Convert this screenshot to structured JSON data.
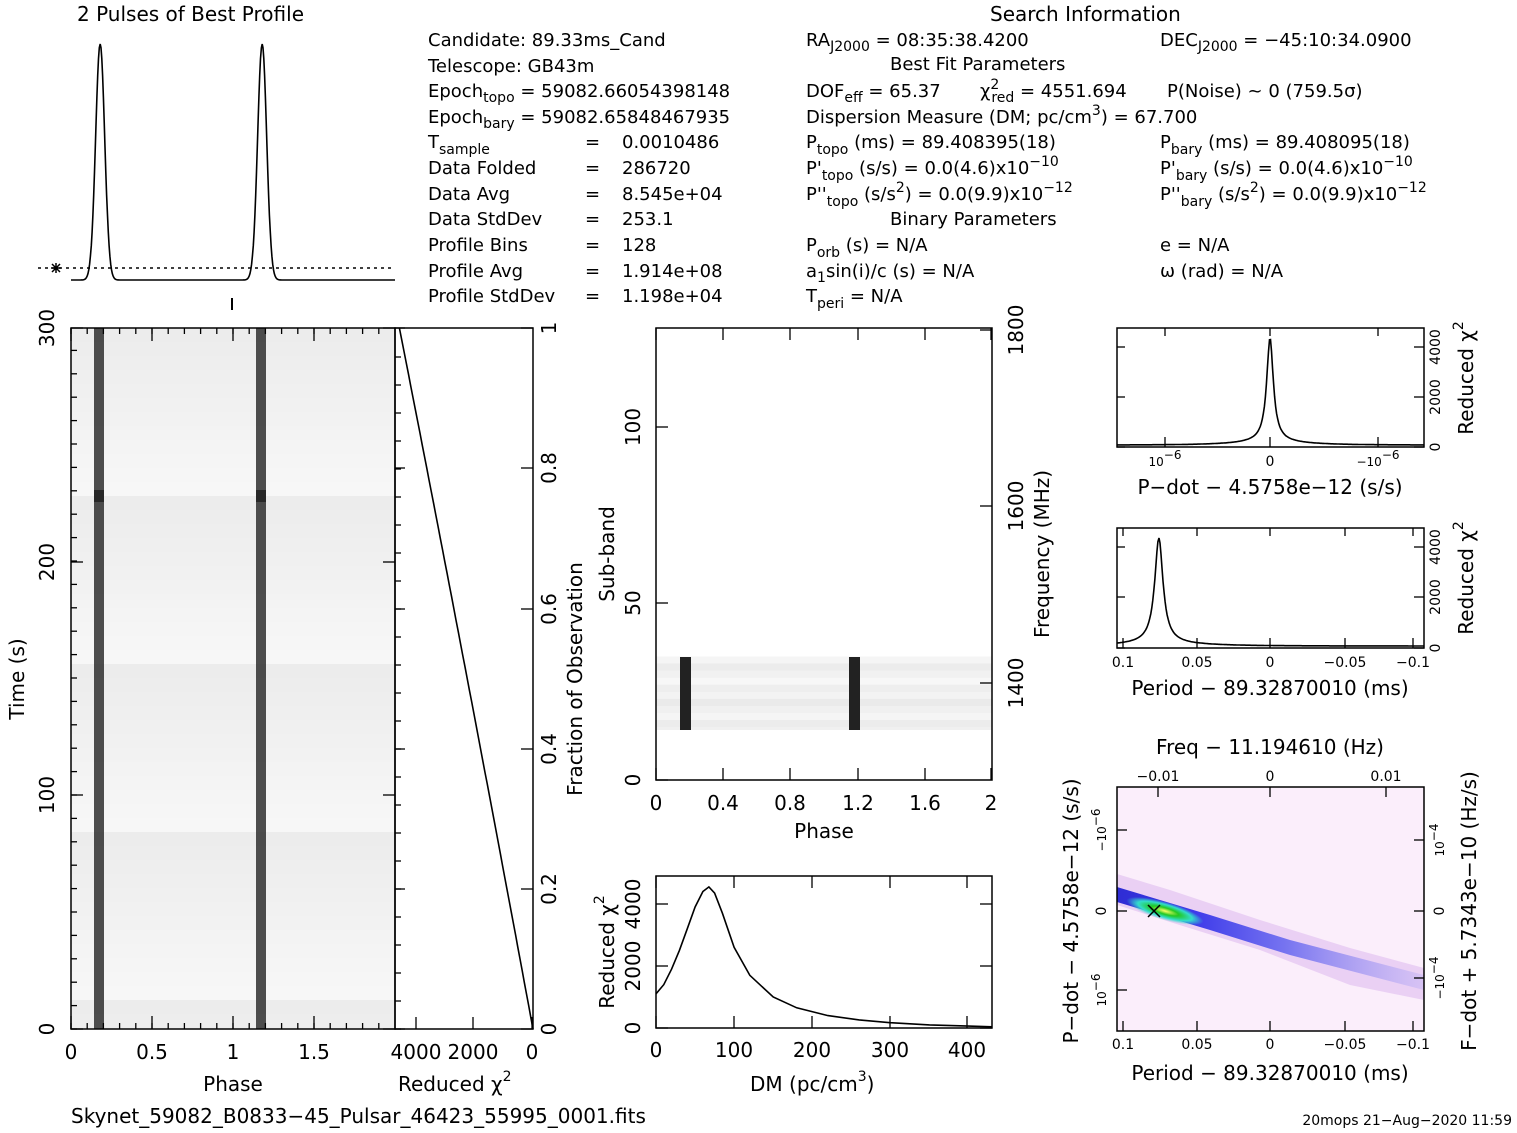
{
  "header": {
    "profile_title": "2 Pulses of Best Profile",
    "search_title": "Search Information",
    "best_fit_title": "Best Fit Parameters",
    "binary_title": "Binary Parameters"
  },
  "info_left": {
    "candidate": "Candidate:  89.33ms_Cand",
    "telescope": "Telescope:  GB43m",
    "epoch_topo_sub": "topo",
    "epoch_topo_val": " = 59082.66054398148",
    "epoch_bary_sub": "bary",
    "epoch_bary_val": " = 59082.65848467935",
    "tsample_sub": "sample",
    "tsample_val": "0.0010486",
    "data_folded_label": "Data Folded",
    "data_folded_val": "286720",
    "data_avg_label": "Data Avg",
    "data_avg_val": "8.545e+04",
    "data_std_label": "Data StdDev",
    "data_std_val": "253.1",
    "prof_bins_label": "Profile Bins",
    "prof_bins_val": "128",
    "prof_avg_label": "Profile Avg",
    "prof_avg_val": "1.914e+08",
    "prof_std_label": "Profile StdDev",
    "prof_std_val": "1.198e+04"
  },
  "info_mid": {
    "ra_sub": "J2000",
    "ra_val": " = 08:35:38.4200",
    "dof_sub": "eff",
    "dof_val": " = 65.37",
    "chi_sub": "red",
    "chi_val": " = 4551.694",
    "pnoise": "P(Noise) ~ 0   (759.5σ)",
    "dm_text": "Dispersion Measure (DM; pc/cm",
    "dm_val": ") = 67.700",
    "ptopo_sub": "topo",
    "ptopo_val": " (ms) =  89.408395(18)",
    "pdtopo_sub": "topo",
    "pdtopo_val": " (s/s) = 0.0(4.6)x10",
    "pdtopo_exp": "−10",
    "pddtopo_sub": "topo",
    "pddtopo_val": " (s/s",
    "pddtopo_val2": ") = 0.0(9.9)x10",
    "pddtopo_exp": "−12",
    "porb_sub": "orb",
    "porb_val": " (s) = N/A",
    "a1_sub": "1",
    "a1_val": "sin(i)/c (s) = N/A",
    "tperi_sub": "peri",
    "tperi_val": " = N/A"
  },
  "info_right": {
    "dec_sub": "J2000",
    "dec_val": " = −45:10:34.0900",
    "pbary_sub": "bary",
    "pbary_val": " (ms) =  89.408095(18)",
    "pdbary_sub": "bary",
    "pdbary_val": " (s/s) = 0.0(4.6)x10",
    "pdbary_exp": "−10",
    "pddbary_sub": "bary",
    "pddbary_val": " (s/s",
    "pddbary_val2": ") = 0.0(9.9)x10",
    "pddbary_exp": "−12",
    "ecc": "e = N/A",
    "omega": "ω (rad) = N/A"
  },
  "footer": {
    "filename": "Skynet_59082_B0833−45_Pulsar_46423_55995_0001.fits",
    "stamp": "20mops 21−Aug−2020 11:59"
  },
  "colors": {
    "ink": "#000000",
    "pulse_dark": "#333333",
    "grid_bg": "#f4f4f4",
    "map_bg": "#fbeefb",
    "map_blue": "#1a1ad0",
    "map_cyan": "#33ddcc",
    "map_green": "#22c822"
  },
  "chart_data": [
    {
      "type": "line",
      "id": "profile",
      "title": "2 Pulses of Best Profile",
      "xlim": [
        0,
        2
      ],
      "pulse_phases": [
        0.18,
        1.18
      ],
      "baseline_dotted": true
    },
    {
      "type": "heatmap",
      "id": "time-phase",
      "xlabel": "Phase",
      "ylabel": "Time (s)",
      "xlim": [
        0,
        2
      ],
      "ylim": [
        0,
        300
      ],
      "x_ticks": [
        "0",
        "0.5",
        "1",
        "1.5"
      ],
      "y_ticks": [
        "0",
        "100",
        "200",
        "300"
      ],
      "pulse_phases": [
        0.18,
        1.18
      ]
    },
    {
      "type": "line",
      "id": "chi2-vs-time",
      "xlabel": "Reduced χ",
      "xlabel_sup": "2",
      "ylabel": "Fraction of Observation",
      "x_ticks": [
        "4000",
        "2000",
        "0"
      ],
      "y_ticks": [
        "0",
        "0.2",
        "0.4",
        "0.6",
        "0.8",
        "1"
      ],
      "x_range": [
        4550,
        0
      ],
      "y_range": [
        0,
        1
      ]
    },
    {
      "type": "heatmap",
      "id": "subband-phase",
      "xlabel": "Phase",
      "ylabel": "Sub-band",
      "right_label": "Frequency (MHz)",
      "xlim": [
        0,
        2
      ],
      "ylim": [
        0,
        128
      ],
      "x_ticks": [
        "0",
        "0.4",
        "0.8",
        "1.2",
        "1.6",
        "2"
      ],
      "y_ticks": [
        "0",
        "50",
        "100"
      ],
      "freq_ticks": [
        "1400",
        "1600",
        "1800"
      ],
      "signal_subbands": [
        15,
        35
      ],
      "pulse_phases": [
        0.18,
        1.18
      ]
    },
    {
      "type": "line",
      "id": "dm-chi2",
      "xlabel": "DM (pc/cm",
      "xlabel_sup": "3",
      "xlabel_tail": ")",
      "ylabel": "Reduced χ",
      "ylabel_sup": "2",
      "x_ticks": [
        "0",
        "100",
        "200",
        "300",
        "400"
      ],
      "y_ticks": [
        "0",
        "2000",
        "4000"
      ],
      "xlim": [
        0,
        430
      ],
      "ylim": [
        0,
        4900
      ],
      "peak": {
        "x": 67.7,
        "y": 4550
      },
      "x": [
        0,
        10,
        20,
        30,
        40,
        50,
        60,
        67.7,
        75,
        85,
        100,
        120,
        150,
        180,
        220,
        260,
        300,
        350,
        400,
        430
      ],
      "y": [
        1100,
        1400,
        1900,
        2500,
        3200,
        3900,
        4400,
        4550,
        4350,
        3700,
        2600,
        1700,
        1000,
        650,
        400,
        260,
        170,
        100,
        60,
        40
      ]
    },
    {
      "type": "line",
      "id": "pdot-chi2",
      "xlabel": "P−dot − 4.5758e−12 (s/s)",
      "ylabel": "Reduced χ",
      "ylabel_sup": "2",
      "x_ticks": [
        "10",
        "0",
        "−10"
      ],
      "x_tick_sup": "−6",
      "y_ticks": [
        "0",
        "2000",
        "4000"
      ],
      "peak": {
        "x": 0,
        "y": 4550
      }
    },
    {
      "type": "line",
      "id": "period-chi2",
      "xlabel": "Period − 89.32870010 (ms)",
      "ylabel": "Reduced χ",
      "ylabel_sup": "2",
      "x_ticks": [
        "0.1",
        "0.05",
        "0",
        "−0.05",
        "−0.1"
      ],
      "y_ticks": [
        "0",
        "2000",
        "4000"
      ],
      "xlim": [
        0.11,
        -0.11
      ],
      "peak": {
        "x": 0.08,
        "y": 4550
      }
    },
    {
      "type": "heatmap",
      "id": "p-pdot",
      "top_label": "Freq − 11.194610 (Hz)",
      "xlabel": "Period − 89.32870010 (ms)",
      "ylabel": "P−dot − 4.5758e−12 (s/s)",
      "right_label": "F−dot + 5.7343e−10 (Hz/s)",
      "x_ticks": [
        "0.1",
        "0.05",
        "0",
        "−0.05",
        "−0.1"
      ],
      "top_ticks": [
        "−0.01",
        "0",
        "0.01"
      ],
      "y_ticks": [
        "0"
      ],
      "y_tick_pow": "10",
      "y_tick_pow_sup": "−6",
      "y_tick_neg_pow": "−10",
      "right_ticks": [
        "0"
      ],
      "right_tick_pow": "10",
      "right_tick_pow_sup": "−4",
      "right_tick_neg_pow": "−10",
      "best": {
        "period": 0.08,
        "pdot": 0
      }
    }
  ]
}
